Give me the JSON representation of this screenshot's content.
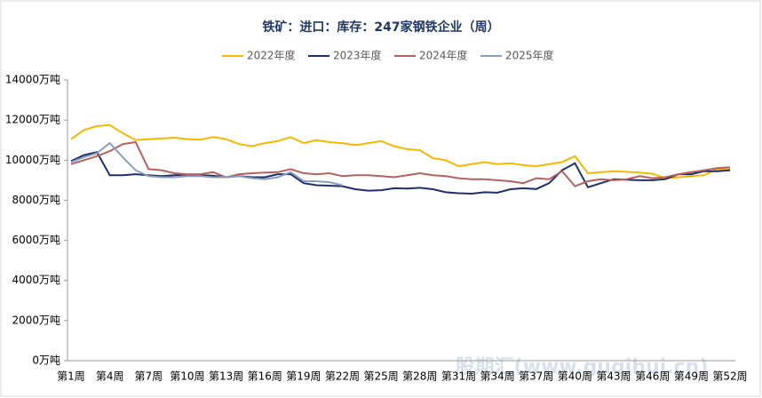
{
  "chart_data": {
    "type": "line",
    "title": "铁矿：进口：库存：247家钢铁企业（周）",
    "categories": [
      "第1周",
      null,
      null,
      "第4周",
      null,
      null,
      "第7周",
      null,
      null,
      "第10周",
      null,
      null,
      "第13周",
      null,
      null,
      "第16周",
      null,
      null,
      "第19周",
      null,
      null,
      "第22周",
      null,
      null,
      "第25周",
      null,
      null,
      "第28周",
      null,
      null,
      "第31周",
      null,
      null,
      "第34周",
      null,
      null,
      "第37周",
      null,
      null,
      "第40周",
      null,
      null,
      "第43周",
      null,
      null,
      "第46周",
      null,
      null,
      "第49周",
      null,
      null,
      "第52周"
    ],
    "series": [
      {
        "name": "2022年度",
        "color": "#f5b800",
        "values": [
          11050,
          11500,
          11700,
          11750,
          11350,
          11000,
          11050,
          11080,
          11120,
          11050,
          11020,
          11150,
          11050,
          10800,
          10700,
          10850,
          10950,
          11150,
          10850,
          11000,
          10900,
          10850,
          10750,
          10850,
          10950,
          10700,
          10550,
          10500,
          10100,
          10000,
          9700,
          9800,
          9900,
          9800,
          9850,
          9750,
          9700,
          9800,
          9900,
          10200,
          9350,
          9400,
          9450,
          9420,
          9380,
          9320,
          9100,
          9150,
          9200,
          9250,
          9550,
          9550
        ]
      },
      {
        "name": "2023年度",
        "color": "#1f2f6b",
        "values": [
          9950,
          10250,
          10400,
          9250,
          9250,
          9300,
          9250,
          9200,
          9250,
          9280,
          9250,
          9230,
          9150,
          9200,
          9150,
          9150,
          9300,
          9300,
          8850,
          8750,
          8730,
          8700,
          8550,
          8480,
          8500,
          8600,
          8580,
          8620,
          8550,
          8400,
          8350,
          8330,
          8400,
          8380,
          8550,
          8600,
          8560,
          8850,
          9500,
          9850,
          8650,
          8850,
          9050,
          9030,
          9000,
          9000,
          9050,
          9300,
          9300,
          9450,
          9450,
          9500
        ]
      },
      {
        "name": "2024年度",
        "color": "#b5615d",
        "values": [
          9800,
          10000,
          10200,
          10450,
          10800,
          10900,
          9550,
          9500,
          9350,
          9300,
          9300,
          9400,
          9150,
          9300,
          9350,
          9380,
          9400,
          9550,
          9350,
          9300,
          9350,
          9200,
          9250,
          9250,
          9200,
          9150,
          9250,
          9350,
          9250,
          9200,
          9100,
          9050,
          9050,
          9000,
          8950,
          8850,
          9100,
          9050,
          9450,
          8700,
          8950,
          9050,
          9000,
          9050,
          9200,
          9100,
          9150,
          9300,
          9400,
          9500,
          9600,
          9650
        ]
      },
      {
        "name": "2025年度",
        "color": "#8a9cbf",
        "values": [
          9900,
          10150,
          10350,
          10850,
          10150,
          9500,
          9200,
          9150,
          9150,
          9200,
          9200,
          9150,
          9150,
          9200,
          9100,
          9050,
          9150,
          9400,
          8950,
          8950,
          8900,
          8750,
          null,
          null,
          null,
          null,
          null,
          null,
          null,
          null,
          null,
          null,
          null,
          null,
          null,
          null,
          null,
          null,
          null,
          null,
          null,
          null,
          null,
          null,
          null,
          null,
          null,
          null,
          null,
          null,
          null,
          null
        ]
      }
    ],
    "ylim": [
      0,
      14000
    ],
    "yticks": [
      {
        "value": 0,
        "label": "0万吨"
      },
      {
        "value": 2000,
        "label": "2000万吨"
      },
      {
        "value": 4000,
        "label": "4000万吨"
      },
      {
        "value": 6000,
        "label": "6000万吨"
      },
      {
        "value": 8000,
        "label": "8000万吨"
      },
      {
        "value": 10000,
        "label": "10000万吨"
      },
      {
        "value": 12000,
        "label": "12000万吨"
      },
      {
        "value": 14000,
        "label": "14000万吨"
      }
    ],
    "legend": "top"
  },
  "watermark": "股期汇(www.guqihui.cn)"
}
